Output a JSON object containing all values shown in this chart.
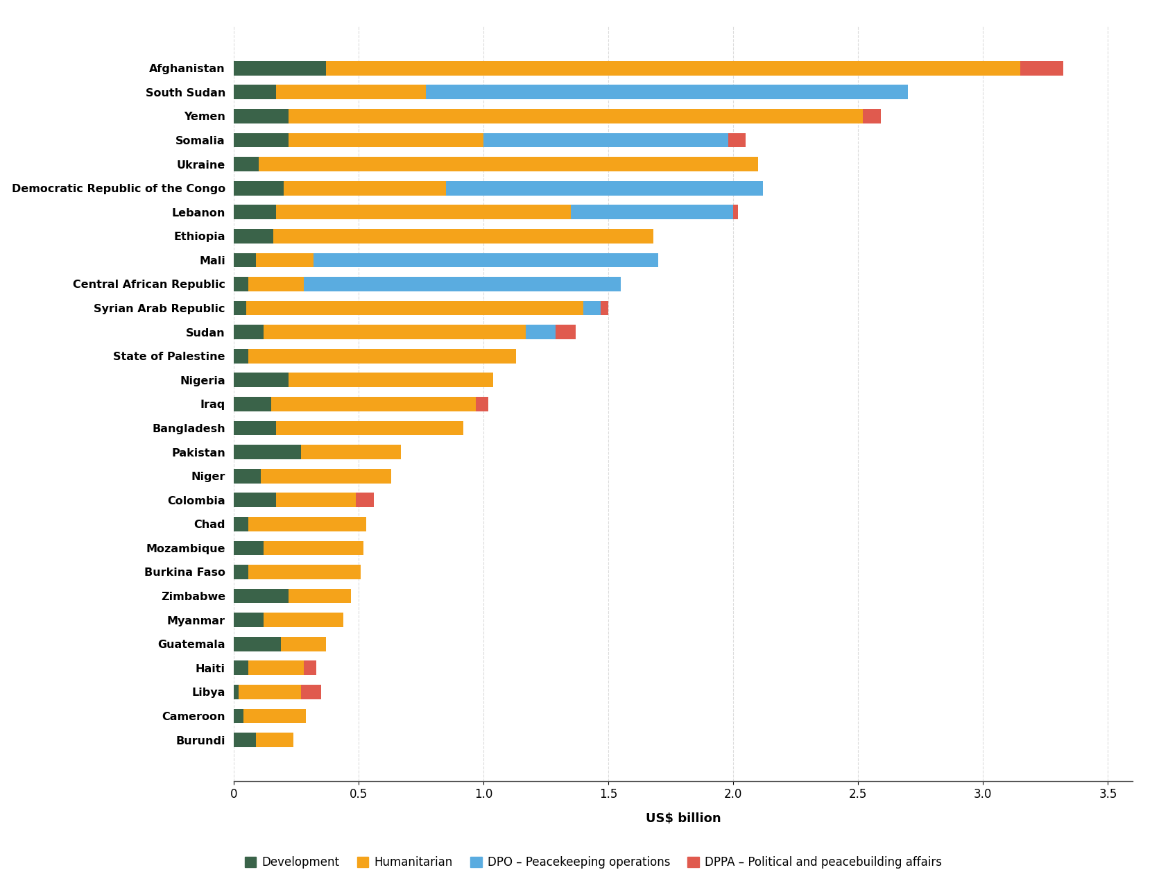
{
  "countries": [
    "Afghanistan",
    "South Sudan",
    "Yemen",
    "Somalia",
    "Ukraine",
    "Democratic Republic of the Congo",
    "Lebanon",
    "Ethiopia",
    "Mali",
    "Central African Republic",
    "Syrian Arab Republic",
    "Sudan",
    "State of Palestine",
    "Nigeria",
    "Iraq",
    "Bangladesh",
    "Pakistan",
    "Niger",
    "Colombia",
    "Chad",
    "Mozambique",
    "Burkina Faso",
    "Zimbabwe",
    "Myanmar",
    "Guatemala",
    "Haiti",
    "Libya",
    "Cameroon",
    "Burundi"
  ],
  "development": [
    0.37,
    0.17,
    0.22,
    0.22,
    0.1,
    0.2,
    0.17,
    0.16,
    0.09,
    0.06,
    0.05,
    0.12,
    0.06,
    0.22,
    0.15,
    0.17,
    0.27,
    0.11,
    0.17,
    0.06,
    0.12,
    0.06,
    0.22,
    0.12,
    0.19,
    0.06,
    0.02,
    0.04,
    0.09
  ],
  "humanitarian": [
    2.78,
    0.6,
    2.3,
    0.78,
    2.0,
    0.65,
    1.18,
    1.52,
    0.23,
    0.22,
    1.35,
    1.05,
    1.07,
    0.82,
    0.82,
    0.75,
    0.4,
    0.52,
    0.32,
    0.47,
    0.4,
    0.45,
    0.25,
    0.32,
    0.18,
    0.22,
    0.25,
    0.25,
    0.15
  ],
  "dpo": [
    0.0,
    1.93,
    0.0,
    0.98,
    0.0,
    1.27,
    0.65,
    0.0,
    1.38,
    1.27,
    0.07,
    0.12,
    0.0,
    0.0,
    0.0,
    0.0,
    0.0,
    0.0,
    0.0,
    0.0,
    0.0,
    0.0,
    0.0,
    0.0,
    0.0,
    0.0,
    0.0,
    0.0,
    0.0
  ],
  "dppa": [
    0.17,
    0.0,
    0.07,
    0.07,
    0.0,
    0.0,
    0.02,
    0.0,
    0.0,
    0.0,
    0.03,
    0.08,
    0.0,
    0.0,
    0.05,
    0.0,
    0.0,
    0.0,
    0.07,
    0.0,
    0.0,
    0.0,
    0.0,
    0.0,
    0.0,
    0.05,
    0.08,
    0.0,
    0.0
  ],
  "colors": {
    "development": "#3a6349",
    "humanitarian": "#f5a31a",
    "dpo": "#5aace0",
    "dppa": "#e05a4e"
  },
  "xlabel": "US$ billion",
  "xlim_max": 3.6,
  "xticks": [
    0,
    0.5,
    1.0,
    1.5,
    2.0,
    2.5,
    3.0,
    3.5
  ],
  "background_color": "#ffffff",
  "legend_labels": [
    "Development",
    "Humanitarian",
    "DPO – Peacekeeping operations",
    "DPPA – Political and peacebuilding affairs"
  ]
}
